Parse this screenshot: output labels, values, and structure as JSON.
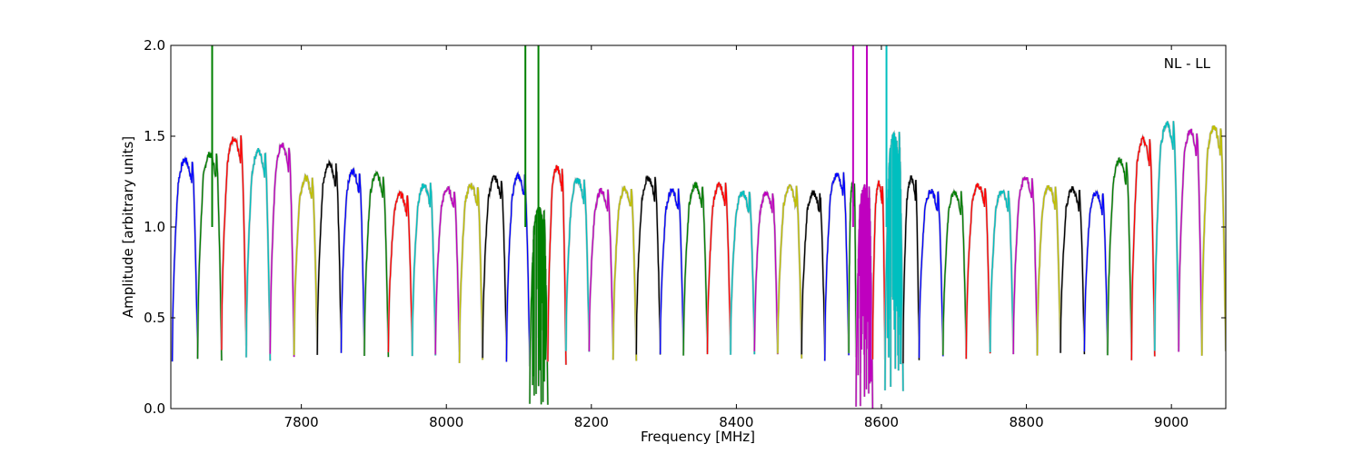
{
  "chart_data": {
    "type": "line",
    "title": "",
    "annotation": "NL - LL",
    "xlabel": "Frequency [MHz]",
    "ylabel": "Amplitude [arbitrary units]",
    "xlim": [
      7620,
      9075
    ],
    "ylim": [
      0.0,
      2.0
    ],
    "xticks": [
      7800,
      8000,
      8200,
      8400,
      8600,
      8800,
      9000
    ],
    "xtick_labels": [
      "7800",
      "8000",
      "8200",
      "8400",
      "8600",
      "8800",
      "9000"
    ],
    "yticks": [
      0.0,
      0.5,
      1.0,
      1.5,
      2.0
    ],
    "ytick_labels": [
      "0.0",
      "0.5",
      "1.0",
      "1.5",
      "2.0"
    ],
    "grid": false,
    "legend": "none",
    "color_cycle": [
      "#0000ff",
      "#008000",
      "#ff0000",
      "#00bfbf",
      "#bf00bf",
      "#bfbf00",
      "#000000"
    ],
    "envelope_color": "#bbbbbb",
    "subbands": [
      {
        "start": 7622,
        "end": 7657,
        "peak": 1.37,
        "floor": 0.26,
        "color": "#0000ff"
      },
      {
        "start": 7657,
        "end": 7690,
        "peak": 1.4,
        "floor": 0.28,
        "color": "#008000"
      },
      {
        "start": 7690,
        "end": 7724,
        "peak": 1.49,
        "floor": 0.33,
        "color": "#ff0000"
      },
      {
        "start": 7724,
        "end": 7757,
        "peak": 1.42,
        "floor": 0.28,
        "color": "#00bfbf"
      },
      {
        "start": 7757,
        "end": 7790,
        "peak": 1.45,
        "floor": 0.3,
        "color": "#bf00bf"
      },
      {
        "start": 7790,
        "end": 7822,
        "peak": 1.27,
        "floor": 0.3,
        "color": "#bfbf00"
      },
      {
        "start": 7822,
        "end": 7855,
        "peak": 1.35,
        "floor": 0.31,
        "color": "#000000"
      },
      {
        "start": 7855,
        "end": 7887,
        "peak": 1.31,
        "floor": 0.3,
        "color": "#0000ff"
      },
      {
        "start": 7887,
        "end": 7920,
        "peak": 1.29,
        "floor": 0.29,
        "color": "#008000"
      },
      {
        "start": 7920,
        "end": 7953,
        "peak": 1.18,
        "floor": 0.31,
        "color": "#ff0000"
      },
      {
        "start": 7953,
        "end": 7985,
        "peak": 1.23,
        "floor": 0.3,
        "color": "#00bfbf"
      },
      {
        "start": 7985,
        "end": 8018,
        "peak": 1.21,
        "floor": 0.31,
        "color": "#bf00bf"
      },
      {
        "start": 8018,
        "end": 8050,
        "peak": 1.23,
        "floor": 0.26,
        "color": "#bfbf00"
      },
      {
        "start": 8050,
        "end": 8083,
        "peak": 1.27,
        "floor": 0.28,
        "color": "#000000"
      },
      {
        "start": 8083,
        "end": 8115,
        "peak": 1.28,
        "floor": 0.25,
        "color": "#0000ff"
      },
      {
        "start": 8115,
        "end": 8140,
        "peak": 1.1,
        "floor": 0.02,
        "color": "#008000"
      },
      {
        "start": 8140,
        "end": 8165,
        "peak": 1.33,
        "floor": 0.25,
        "color": "#ff0000"
      },
      {
        "start": 8165,
        "end": 8197,
        "peak": 1.26,
        "floor": 0.32,
        "color": "#00bfbf"
      },
      {
        "start": 8197,
        "end": 8230,
        "peak": 1.2,
        "floor": 0.33,
        "color": "#bf00bf"
      },
      {
        "start": 8230,
        "end": 8262,
        "peak": 1.21,
        "floor": 0.27,
        "color": "#bfbf00"
      },
      {
        "start": 8262,
        "end": 8295,
        "peak": 1.27,
        "floor": 0.31,
        "color": "#000000"
      },
      {
        "start": 8295,
        "end": 8327,
        "peak": 1.2,
        "floor": 0.31,
        "color": "#0000ff"
      },
      {
        "start": 8327,
        "end": 8360,
        "peak": 1.23,
        "floor": 0.3,
        "color": "#008000"
      },
      {
        "start": 8360,
        "end": 8392,
        "peak": 1.23,
        "floor": 0.3,
        "color": "#ff0000"
      },
      {
        "start": 8392,
        "end": 8425,
        "peak": 1.19,
        "floor": 0.31,
        "color": "#00bfbf"
      },
      {
        "start": 8425,
        "end": 8457,
        "peak": 1.19,
        "floor": 0.31,
        "color": "#bf00bf"
      },
      {
        "start": 8457,
        "end": 8490,
        "peak": 1.22,
        "floor": 0.29,
        "color": "#bfbf00"
      },
      {
        "start": 8490,
        "end": 8522,
        "peak": 1.19,
        "floor": 0.31,
        "color": "#000000"
      },
      {
        "start": 8522,
        "end": 8555,
        "peak": 1.29,
        "floor": 0.28,
        "color": "#0000ff"
      },
      {
        "start": 8555,
        "end": 8565,
        "peak": 1.24,
        "floor": 0.3,
        "color": "#008000"
      },
      {
        "start": 8565,
        "end": 8588,
        "peak": 1.22,
        "floor": 0.0,
        "color": "#bf00bf"
      },
      {
        "start": 8588,
        "end": 8605,
        "peak": 1.24,
        "floor": 0.28,
        "color": "#ff0000"
      },
      {
        "start": 8605,
        "end": 8630,
        "peak": 1.51,
        "floor": 0.1,
        "color": "#00bfbf"
      },
      {
        "start": 8630,
        "end": 8652,
        "peak": 1.27,
        "floor": 0.26,
        "color": "#000000"
      },
      {
        "start": 8652,
        "end": 8685,
        "peak": 1.2,
        "floor": 0.29,
        "color": "#0000ff"
      },
      {
        "start": 8685,
        "end": 8717,
        "peak": 1.19,
        "floor": 0.3,
        "color": "#008000"
      },
      {
        "start": 8717,
        "end": 8750,
        "peak": 1.23,
        "floor": 0.29,
        "color": "#ff0000"
      },
      {
        "start": 8750,
        "end": 8782,
        "peak": 1.2,
        "floor": 0.31,
        "color": "#00bfbf"
      },
      {
        "start": 8782,
        "end": 8815,
        "peak": 1.27,
        "floor": 0.3,
        "color": "#bf00bf"
      },
      {
        "start": 8815,
        "end": 8847,
        "peak": 1.22,
        "floor": 0.3,
        "color": "#bfbf00"
      },
      {
        "start": 8847,
        "end": 8880,
        "peak": 1.21,
        "floor": 0.3,
        "color": "#000000"
      },
      {
        "start": 8880,
        "end": 8912,
        "peak": 1.19,
        "floor": 0.31,
        "color": "#0000ff"
      },
      {
        "start": 8912,
        "end": 8945,
        "peak": 1.37,
        "floor": 0.3,
        "color": "#008000"
      },
      {
        "start": 8945,
        "end": 8977,
        "peak": 1.48,
        "floor": 0.28,
        "color": "#ff0000"
      },
      {
        "start": 8977,
        "end": 9010,
        "peak": 1.57,
        "floor": 0.33,
        "color": "#00bfbf"
      },
      {
        "start": 9010,
        "end": 9042,
        "peak": 1.53,
        "floor": 0.31,
        "color": "#bf00bf"
      },
      {
        "start": 9042,
        "end": 9075,
        "peak": 1.55,
        "floor": 0.3,
        "color": "#bfbf00"
      }
    ],
    "spikes": [
      {
        "x": 7677,
        "y": 2.0,
        "color": "#008000"
      },
      {
        "x": 8109,
        "y": 2.0,
        "color": "#008000"
      },
      {
        "x": 8127,
        "y": 2.0,
        "color": "#008000"
      },
      {
        "x": 8561,
        "y": 2.0,
        "color": "#bf00bf"
      },
      {
        "x": 8580,
        "y": 2.0,
        "color": "#bf00bf"
      },
      {
        "x": 8607,
        "y": 2.0,
        "color": "#00bfbf"
      }
    ]
  }
}
